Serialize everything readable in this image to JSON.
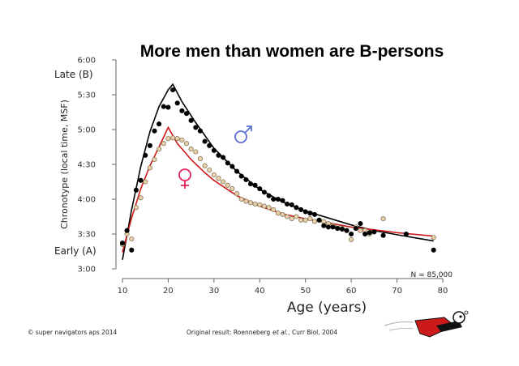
{
  "chart_data": {
    "type": "scatter",
    "title": "More men than women are B-persons",
    "xlabel": "Age (years)",
    "ylabel": "Chronotype (local time, MSF)",
    "xlim": [
      10,
      80
    ],
    "ylim": [
      3.0,
      6.0
    ],
    "x_ticks": [
      10,
      20,
      30,
      40,
      50,
      60,
      70,
      80
    ],
    "y_ticks": [
      {
        "value": 3.0,
        "label": "3:00"
      },
      {
        "value": 3.5,
        "label": "3:30"
      },
      {
        "value": 4.0,
        "label": "4:00"
      },
      {
        "value": 4.5,
        "label": "4:30"
      },
      {
        "value": 5.0,
        "label": "5:00"
      },
      {
        "value": 5.5,
        "label": "5:30"
      },
      {
        "value": 6.0,
        "label": "6:00"
      }
    ],
    "side_labels": {
      "late": "Late (B)",
      "early": "Early (A)"
    },
    "sample_note": "N = 85,000",
    "series": [
      {
        "color": "#000000",
        "marker_fill": "#000000",
        "fit_color": "#000000",
        "symbol": "♂",
        "symbol_color": "#5b6fd6",
        "points": [
          [
            10,
            3.37
          ],
          [
            11,
            3.55
          ],
          [
            12,
            3.27
          ],
          [
            13,
            4.13
          ],
          [
            14,
            4.27
          ],
          [
            15,
            4.63
          ],
          [
            16,
            4.77
          ],
          [
            17,
            4.98
          ],
          [
            18,
            5.08
          ],
          [
            19,
            5.33
          ],
          [
            20,
            5.32
          ],
          [
            21,
            5.57
          ],
          [
            22,
            5.38
          ],
          [
            23,
            5.27
          ],
          [
            24,
            5.23
          ],
          [
            25,
            5.13
          ],
          [
            26,
            5.03
          ],
          [
            27,
            4.98
          ],
          [
            28,
            4.83
          ],
          [
            29,
            4.77
          ],
          [
            30,
            4.7
          ],
          [
            31,
            4.63
          ],
          [
            32,
            4.6
          ],
          [
            33,
            4.52
          ],
          [
            34,
            4.47
          ],
          [
            35,
            4.4
          ],
          [
            36,
            4.33
          ],
          [
            37,
            4.28
          ],
          [
            38,
            4.22
          ],
          [
            39,
            4.2
          ],
          [
            40,
            4.15
          ],
          [
            41,
            4.1
          ],
          [
            42,
            4.05
          ],
          [
            43,
            4.0
          ],
          [
            44,
            4.0
          ],
          [
            45,
            3.98
          ],
          [
            46,
            3.93
          ],
          [
            47,
            3.92
          ],
          [
            48,
            3.88
          ],
          [
            49,
            3.85
          ],
          [
            50,
            3.82
          ],
          [
            51,
            3.8
          ],
          [
            52,
            3.78
          ],
          [
            53,
            3.7
          ],
          [
            54,
            3.62
          ],
          [
            55,
            3.6
          ],
          [
            56,
            3.6
          ],
          [
            57,
            3.58
          ],
          [
            58,
            3.57
          ],
          [
            59,
            3.55
          ],
          [
            60,
            3.5
          ],
          [
            61,
            3.58
          ],
          [
            62,
            3.65
          ],
          [
            63,
            3.5
          ],
          [
            64,
            3.52
          ],
          [
            65,
            3.53
          ],
          [
            67,
            3.48
          ],
          [
            72,
            3.5
          ],
          [
            78,
            3.27
          ]
        ],
        "fit": [
          [
            10,
            3.13
          ],
          [
            12,
            3.85
          ],
          [
            14,
            4.47
          ],
          [
            16,
            4.97
          ],
          [
            18,
            5.33
          ],
          [
            20,
            5.57
          ],
          [
            21,
            5.65
          ],
          [
            23,
            5.4
          ],
          [
            26,
            5.1
          ],
          [
            30,
            4.73
          ],
          [
            35,
            4.4
          ],
          [
            40,
            4.14
          ],
          [
            45,
            3.96
          ],
          [
            50,
            3.83
          ],
          [
            55,
            3.73
          ],
          [
            60,
            3.63
          ],
          [
            65,
            3.55
          ],
          [
            70,
            3.49
          ],
          [
            78,
            3.4
          ]
        ]
      },
      {
        "color": "#cc1a1a",
        "marker_fill": "#e8d0a8",
        "fit_color": "#cc1a1a",
        "symbol": "♀",
        "symbol_color": "#e0245a",
        "points": [
          [
            10,
            3.35
          ],
          [
            11,
            3.5
          ],
          [
            12,
            3.43
          ],
          [
            13,
            3.88
          ],
          [
            14,
            4.02
          ],
          [
            15,
            4.25
          ],
          [
            16,
            4.45
          ],
          [
            17,
            4.57
          ],
          [
            18,
            4.72
          ],
          [
            19,
            4.8
          ],
          [
            20,
            4.87
          ],
          [
            21,
            4.88
          ],
          [
            22,
            4.87
          ],
          [
            23,
            4.85
          ],
          [
            24,
            4.8
          ],
          [
            25,
            4.72
          ],
          [
            26,
            4.68
          ],
          [
            27,
            4.58
          ],
          [
            28,
            4.48
          ],
          [
            29,
            4.42
          ],
          [
            30,
            4.35
          ],
          [
            31,
            4.3
          ],
          [
            32,
            4.25
          ],
          [
            33,
            4.2
          ],
          [
            34,
            4.15
          ],
          [
            35,
            4.08
          ],
          [
            36,
            4.0
          ],
          [
            37,
            3.97
          ],
          [
            38,
            3.95
          ],
          [
            39,
            3.93
          ],
          [
            40,
            3.92
          ],
          [
            41,
            3.9
          ],
          [
            42,
            3.88
          ],
          [
            43,
            3.85
          ],
          [
            44,
            3.8
          ],
          [
            45,
            3.78
          ],
          [
            46,
            3.75
          ],
          [
            47,
            3.72
          ],
          [
            48,
            3.75
          ],
          [
            49,
            3.7
          ],
          [
            50,
            3.7
          ],
          [
            51,
            3.72
          ],
          [
            52,
            3.68
          ],
          [
            53,
            3.7
          ],
          [
            54,
            3.68
          ],
          [
            55,
            3.65
          ],
          [
            56,
            3.62
          ],
          [
            57,
            3.6
          ],
          [
            58,
            3.58
          ],
          [
            59,
            3.55
          ],
          [
            60,
            3.42
          ],
          [
            61,
            3.6
          ],
          [
            62,
            3.55
          ],
          [
            63,
            3.55
          ],
          [
            64,
            3.5
          ],
          [
            67,
            3.72
          ],
          [
            78,
            3.45
          ]
        ],
        "fit": [
          [
            10,
            3.24
          ],
          [
            12,
            3.73
          ],
          [
            14,
            4.15
          ],
          [
            16,
            4.48
          ],
          [
            18,
            4.75
          ],
          [
            20,
            5.03
          ],
          [
            22,
            4.8
          ],
          [
            25,
            4.57
          ],
          [
            28,
            4.38
          ],
          [
            30,
            4.27
          ],
          [
            35,
            4.05
          ],
          [
            40,
            3.9
          ],
          [
            45,
            3.79
          ],
          [
            50,
            3.72
          ],
          [
            55,
            3.66
          ],
          [
            60,
            3.6
          ],
          [
            65,
            3.56
          ],
          [
            70,
            3.52
          ],
          [
            78,
            3.47
          ]
        ]
      }
    ]
  },
  "footer": {
    "copyright": "© super navigators aps 2014",
    "citation_prefix": "Original result: Roenneberg",
    "citation_etal": "et al.",
    "citation_suffix": ", Curr Biol, 2004"
  },
  "mascot": {
    "icon": "flying-hero-icon",
    "cape_color": "#cc1a1a"
  }
}
